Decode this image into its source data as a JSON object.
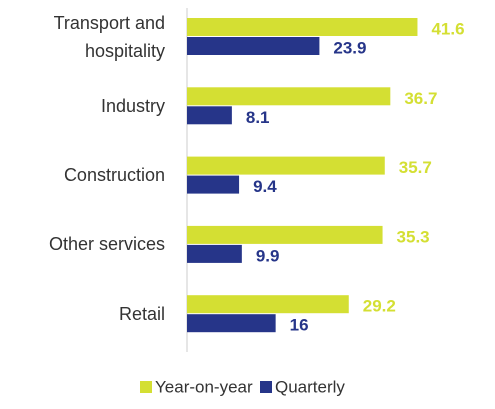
{
  "chart_data": {
    "type": "bar",
    "orientation": "horizontal",
    "categories": [
      "Transport and hospitality",
      "Industry",
      "Construction",
      "Other services",
      "Retail"
    ],
    "series": [
      {
        "name": "Year-on-year",
        "color": "#d4df33",
        "values": [
          41.6,
          36.7,
          35.7,
          35.3,
          29.2
        ]
      },
      {
        "name": "Quarterly",
        "color": "#263589",
        "values": [
          23.9,
          8.1,
          9.4,
          9.9,
          16
        ]
      }
    ],
    "legend": "bottom"
  }
}
